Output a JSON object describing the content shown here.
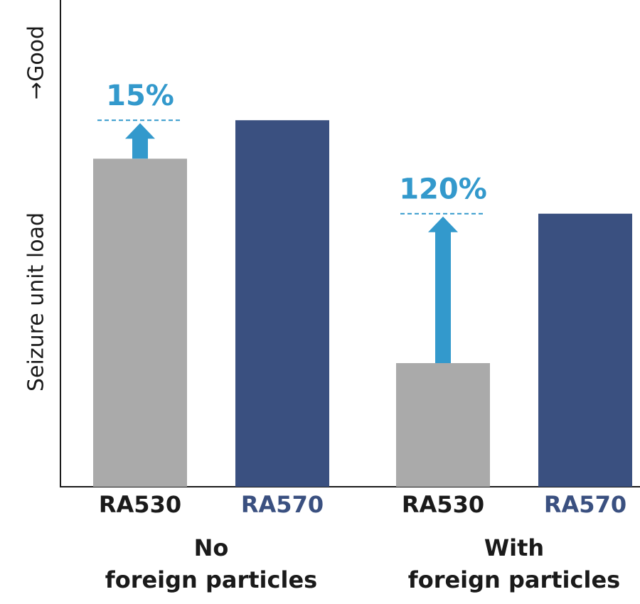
{
  "chart_data": {
    "type": "bar",
    "y_label": "Seizure unit load",
    "y_label_arrow": "→Good",
    "categories": [
      [
        "No",
        "foreign particles"
      ],
      [
        "With",
        "foreign particles"
      ]
    ],
    "series": [
      {
        "name": "RA530",
        "color": "#aaaaaa",
        "values": [
          67.4,
          25.4
        ]
      },
      {
        "name": "RA570",
        "color": "#3a5080",
        "values": [
          75.3,
          56.1
        ]
      }
    ],
    "annotations": [
      {
        "value": 15,
        "label": "15%"
      },
      {
        "value": 120,
        "label": "120%"
      }
    ],
    "annotation_color": "#3399cc",
    "ylim": [
      0,
      100
    ]
  }
}
